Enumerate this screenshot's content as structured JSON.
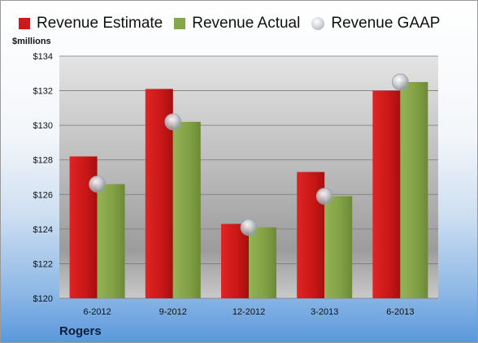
{
  "legend": {
    "estimate": "Revenue Estimate",
    "actual": "Revenue Actual",
    "gaap": "Revenue GAAP"
  },
  "unit_label": "$millions",
  "footer": "Rogers",
  "colors": {
    "estimate": "#cc1a1a",
    "actual": "#86a64a",
    "gaap": "#c8ccd2"
  },
  "chart_data": {
    "type": "bar",
    "title": "",
    "xlabel": "",
    "ylabel": "$millions",
    "categories": [
      "6-2012",
      "9-2012",
      "12-2012",
      "3-2013",
      "6-2013"
    ],
    "series": [
      {
        "name": "Revenue Estimate",
        "type": "bar",
        "values": [
          128.2,
          132.1,
          124.3,
          127.3,
          132.0
        ]
      },
      {
        "name": "Revenue Actual",
        "type": "bar",
        "values": [
          126.6,
          130.2,
          124.1,
          125.9,
          132.5
        ]
      },
      {
        "name": "Revenue GAAP",
        "type": "scatter",
        "values": [
          126.6,
          130.2,
          124.1,
          125.9,
          132.5
        ]
      }
    ],
    "ylim": [
      120,
      134
    ],
    "yticks": [
      "$120",
      "$122",
      "$124",
      "$126",
      "$128",
      "$130",
      "$132",
      "$134"
    ],
    "grid": true,
    "legend_position": "top"
  }
}
